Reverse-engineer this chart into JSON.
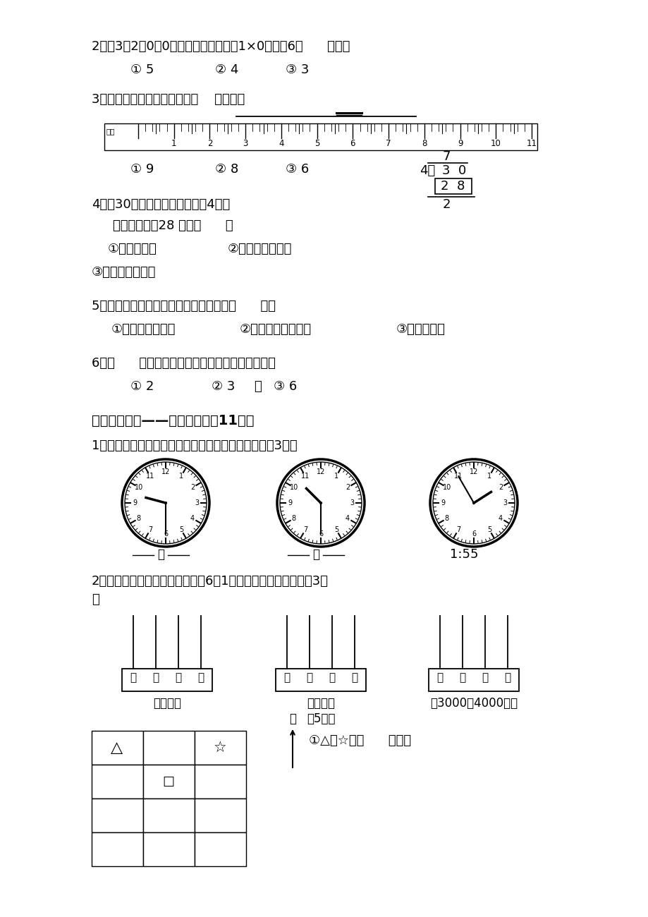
{
  "bg_color": "#ffffff",
  "q2_text": "2、用3、2、0、0组成的四位数，只词1×0的数有6（      ）个。",
  "q2_opts": [
    "① 5",
    "② 4",
    "③ 3"
  ],
  "q3_text": "3、下图中绳子的长度大约为（    ）厘米。",
  "q3_opts": [
    "① 9",
    "② 8",
    "③ 6"
  ],
  "q4_text1": "4、有30支铅笔，每个小朋友分4支。",
  "q4_text2": "右边绝式中皂28 表示（      ）",
  "q4_opts": [
    "①还剩的铅笔",
    "②已经分掎的铅笔"
  ],
  "q4_opt3": "③一共要分的铅笔",
  "q5_text": "5、三角板上的直角与黑板上的直角比，（      ）。",
  "q5_opts": [
    "①黑板上的直角大",
    "②三角板上的直角大",
    "③两个一样大"
  ],
  "q6_text": "6、（      ）时整，钟面上的时针和分针组成直角。",
  "q6_opts": [
    "① 2",
    "② 3",
    "③ 6"
  ],
  "s4_title": "四、手脑并用——画画填填。（11分）",
  "s4_q1": "1、根据钟面写时刻或根据时刻在钟面上画出分针。（3分）",
  "s4_q2": "2、按要求在下面每个计数器上画6题1珠，表示一个四位数。（3分",
  "s4_q2b": "）",
  "abacus_label1": "最大的数",
  "abacus_label2": "最小的数",
  "abacus_label2b": "（5分）",
  "abacus_label3": "在3000到4000的数",
  "grid_q": "①△在☆的（      ）面。",
  "north": "北",
  "abacus_chars": [
    "千",
    "百",
    "十",
    "个"
  ]
}
